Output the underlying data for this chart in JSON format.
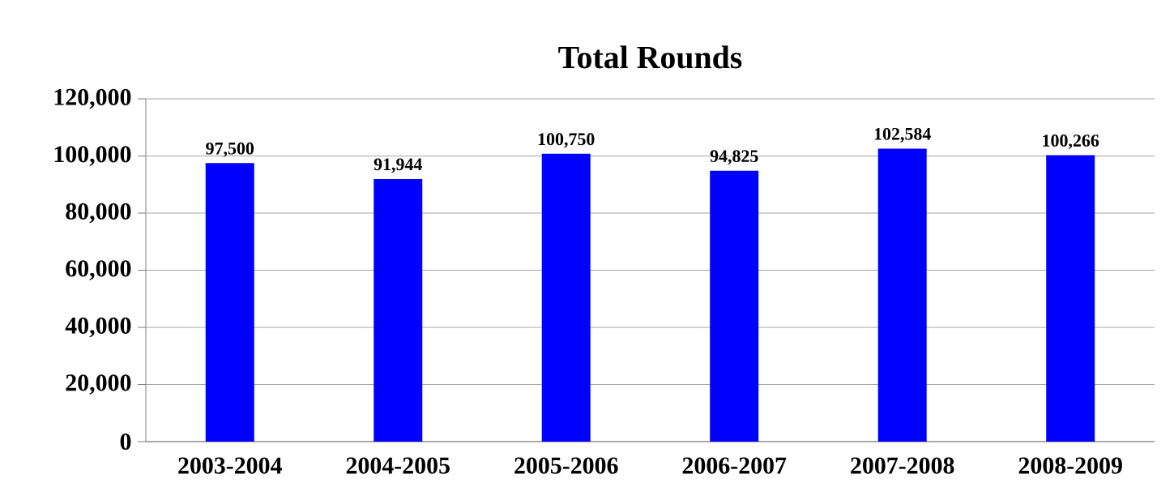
{
  "chart_data": {
    "type": "bar",
    "title": "Total Rounds",
    "categories": [
      "2003-2004",
      "2004-2005",
      "2005-2006",
      "2006-2007",
      "2007-2008",
      "2008-2009"
    ],
    "values": [
      97500,
      91944,
      100750,
      94825,
      102584,
      100266
    ],
    "value_labels": [
      "97,500",
      "91,944",
      "100,750",
      "94,825",
      "102,584",
      "100,266"
    ],
    "color": "#0000ff",
    "ylim": [
      0,
      120000
    ],
    "yticks": [
      0,
      {
        "value": 20000,
        "label": "20,000"
      },
      {
        "value": 40000,
        "label": "40,000"
      },
      {
        "value": 60000,
        "label": "60,000"
      },
      {
        "value": 80000,
        "label": "80,000"
      },
      {
        "value": 100000,
        "label": "100,000"
      },
      {
        "value": 120000,
        "label": "120,000"
      }
    ],
    "grid": "y"
  }
}
